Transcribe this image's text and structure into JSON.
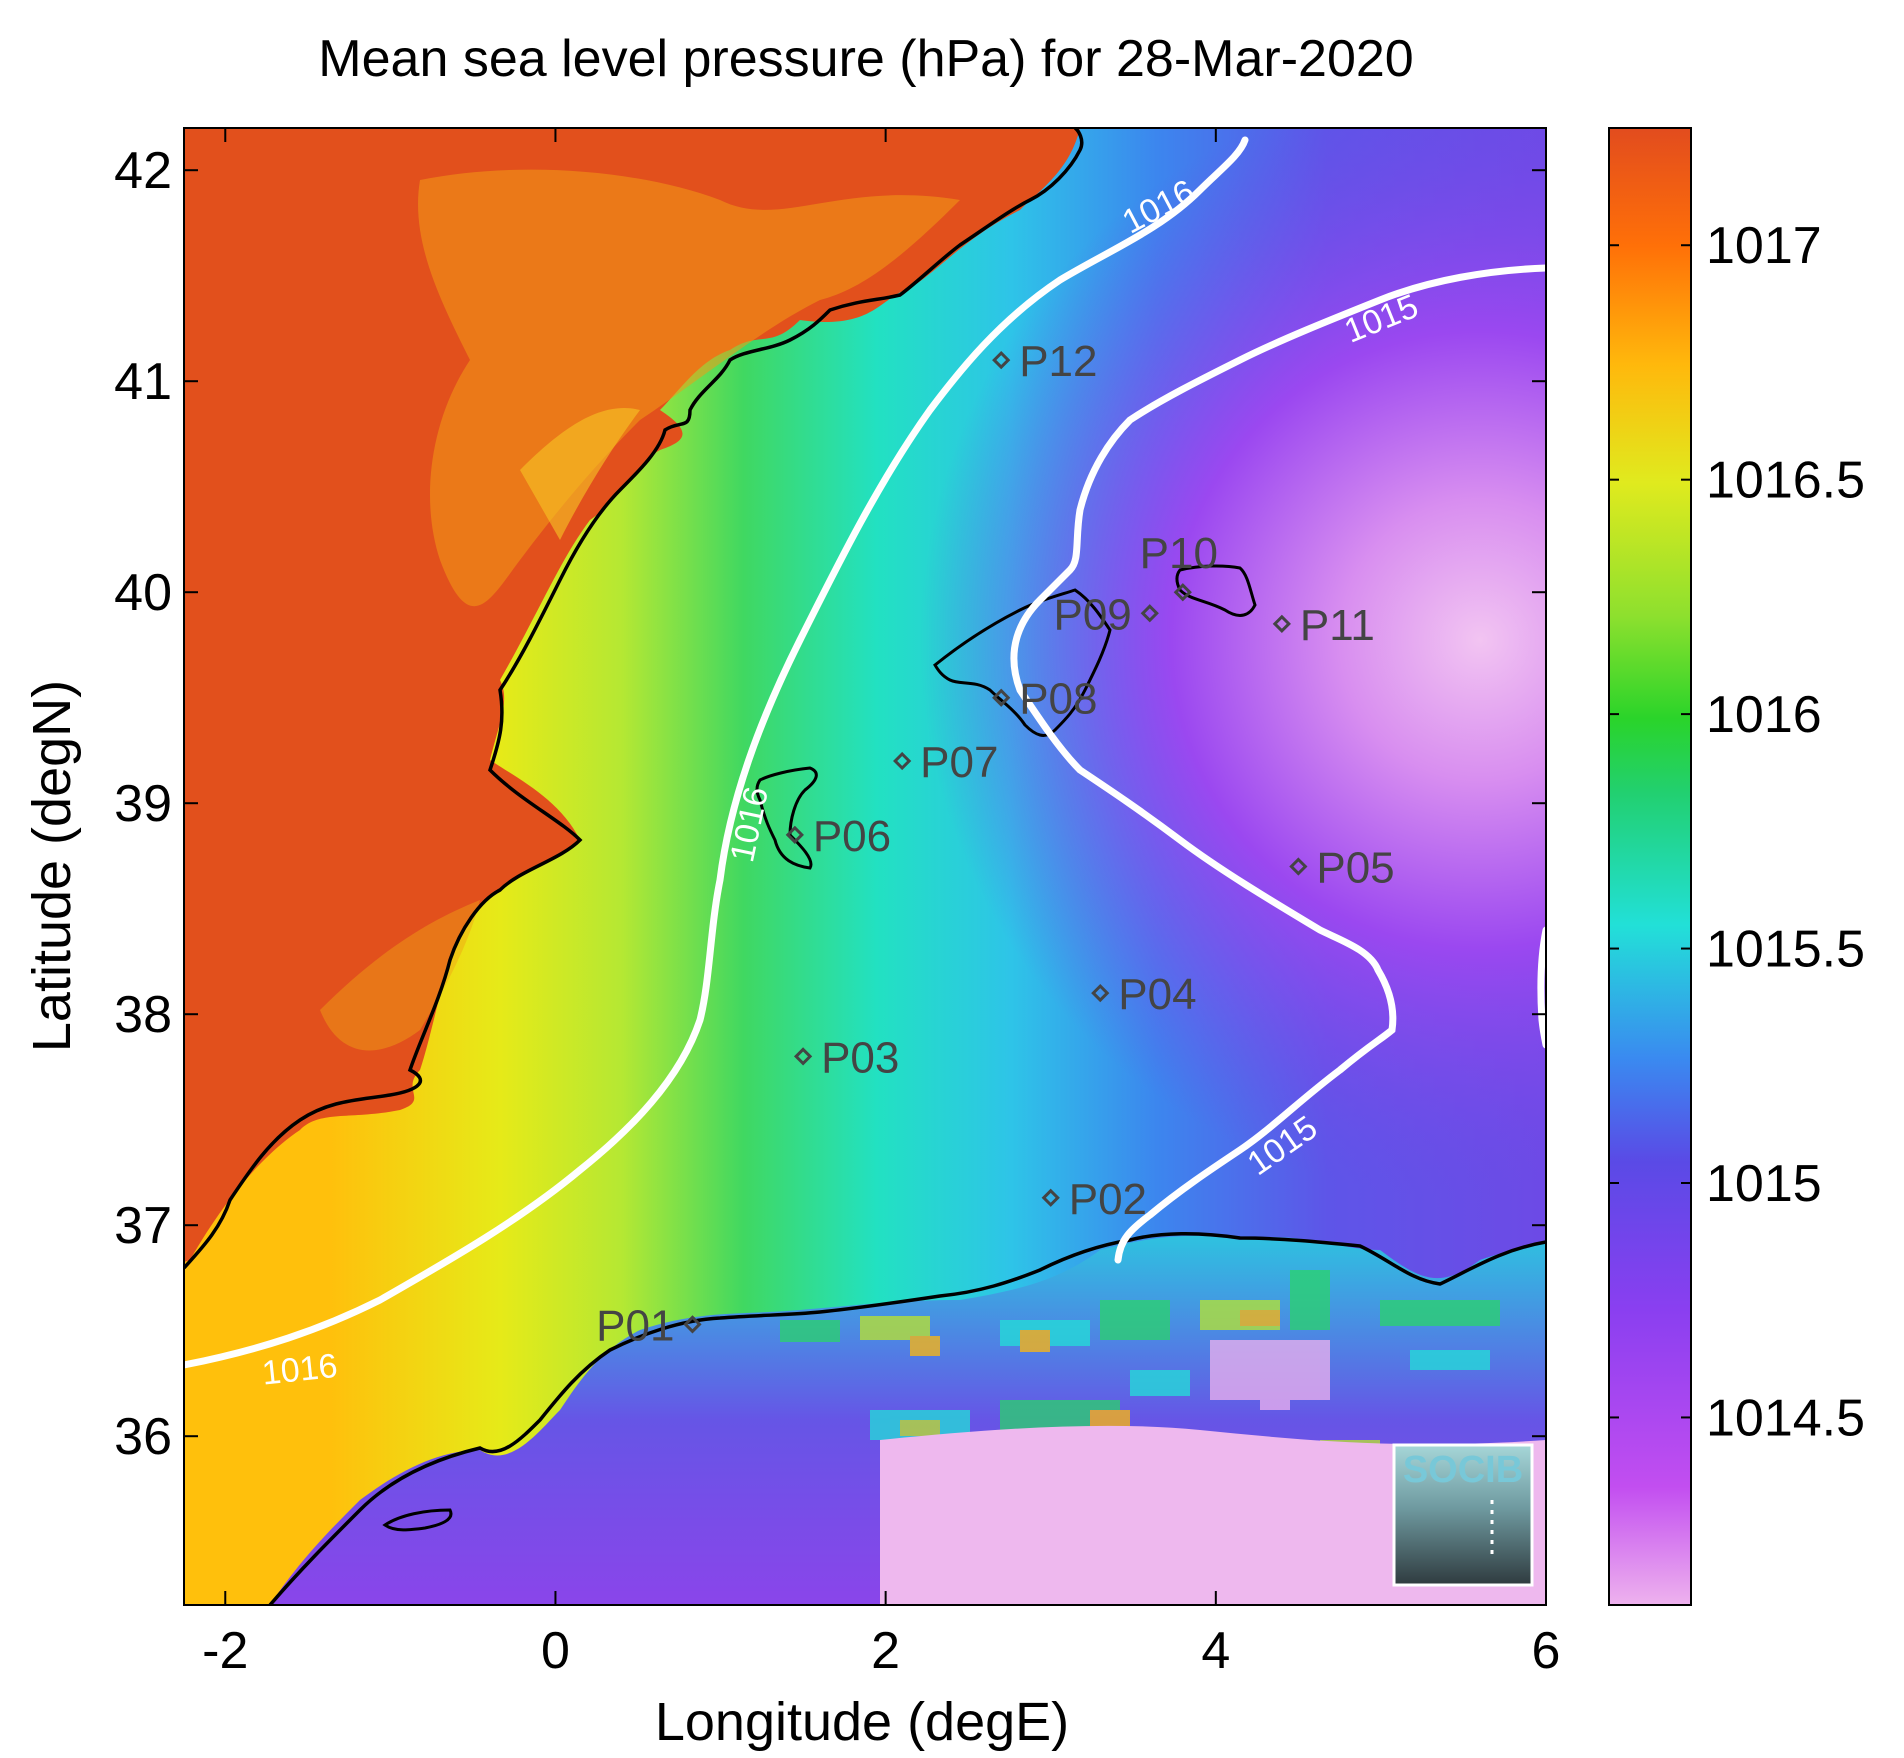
{
  "title": "Mean sea level pressure (hPa) for 28-Mar-2020",
  "xlabel": "Longitude (degE)",
  "ylabel": "Latitude (degN)",
  "x_ticks": [
    {
      "value": -2,
      "label": "-2"
    },
    {
      "value": 0,
      "label": "0"
    },
    {
      "value": 2,
      "label": "2"
    },
    {
      "value": 4,
      "label": "4"
    },
    {
      "value": 6,
      "label": "6"
    }
  ],
  "y_ticks": [
    {
      "value": 36,
      "label": "36"
    },
    {
      "value": 37,
      "label": "37"
    },
    {
      "value": 38,
      "label": "38"
    },
    {
      "value": 39,
      "label": "39"
    },
    {
      "value": 40,
      "label": "40"
    },
    {
      "value": 41,
      "label": "41"
    },
    {
      "value": 42,
      "label": "42"
    }
  ],
  "colorbar": {
    "range": [
      1014.1,
      1017.25
    ],
    "ticks": [
      {
        "value": 1014.5,
        "label": "1014.5"
      },
      {
        "value": 1015,
        "label": "1015"
      },
      {
        "value": 1015.5,
        "label": "1015.5"
      },
      {
        "value": 1016,
        "label": "1016"
      },
      {
        "value": 1016.5,
        "label": "1016.5"
      },
      {
        "value": 1017,
        "label": "1017"
      }
    ],
    "colors": [
      "#eeb2ee",
      "#9933ee",
      "#6a45e8",
      "#3388f0",
      "#22e0d8",
      "#33d455",
      "#c6ec2e",
      "#ffc10c",
      "#ff7a0a",
      "#e4511e"
    ]
  },
  "contour_labels": [
    {
      "text": "1016",
      "lon": 1.17,
      "lat": 38.9,
      "rotate": -78
    },
    {
      "text": "1016",
      "lon": 3.65,
      "lat": 41.83,
      "rotate": -28
    },
    {
      "text": "1016",
      "lon": -1.55,
      "lat": 36.32,
      "rotate": -6
    },
    {
      "text": "1015",
      "lon": 5.0,
      "lat": 41.3,
      "rotate": -22
    },
    {
      "text": "1015",
      "lon": 4.4,
      "lat": 37.38,
      "rotate": -35
    }
  ],
  "stations": [
    {
      "id": "P01",
      "lon": 0.83,
      "lat": 36.53,
      "label_side": "left"
    },
    {
      "id": "P02",
      "lon": 3.0,
      "lat": 37.13,
      "label_side": "right"
    },
    {
      "id": "P03",
      "lon": 1.5,
      "lat": 37.8,
      "label_side": "right"
    },
    {
      "id": "P04",
      "lon": 3.3,
      "lat": 38.1,
      "label_side": "right"
    },
    {
      "id": "P05",
      "lon": 4.5,
      "lat": 38.7,
      "label_side": "right"
    },
    {
      "id": "P06",
      "lon": 1.45,
      "lat": 38.85,
      "label_side": "right"
    },
    {
      "id": "P07",
      "lon": 2.1,
      "lat": 39.2,
      "label_side": "right"
    },
    {
      "id": "P08",
      "lon": 2.7,
      "lat": 39.5,
      "label_side": "right"
    },
    {
      "id": "P09",
      "lon": 3.6,
      "lat": 39.9,
      "label_side": "left"
    },
    {
      "id": "P10",
      "lon": 3.8,
      "lat": 40.0,
      "label_side": "above"
    },
    {
      "id": "P11",
      "lon": 4.4,
      "lat": 39.85,
      "label_side": "right"
    },
    {
      "id": "P12",
      "lon": 2.7,
      "lat": 41.1,
      "label_side": "right"
    }
  ],
  "logo_text": "SOCIB"
}
